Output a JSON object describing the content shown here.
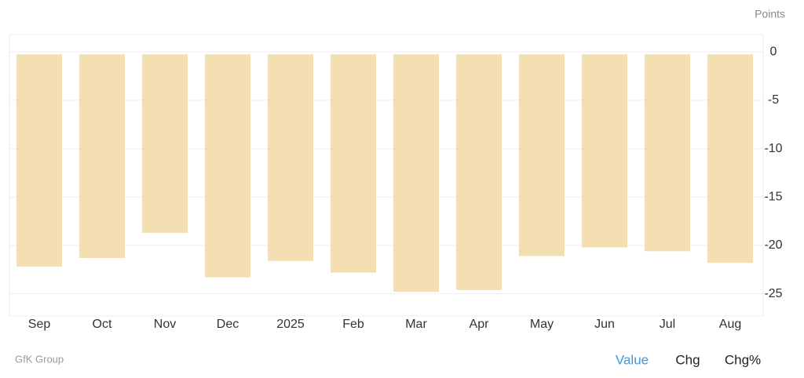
{
  "chart_data": {
    "type": "bar",
    "unit_label": "Points",
    "categories": [
      "Sep",
      "Oct",
      "Nov",
      "Dec",
      "2025",
      "Feb",
      "Mar",
      "Apr",
      "May",
      "Jun",
      "Jul",
      "Aug"
    ],
    "values": [
      -22.2,
      -21.3,
      -18.7,
      -23.3,
      -21.6,
      -22.8,
      -24.8,
      -24.6,
      -21.1,
      -20.2,
      -20.6,
      -21.8
    ],
    "color": "#f3deb2",
    "ylim": [
      -27.3,
      1.8
    ],
    "yticks": [
      0,
      -5,
      -10,
      -15,
      -20,
      -25
    ],
    "grid": true
  },
  "footer": {
    "source": "GfK Group",
    "tabs": [
      "Value",
      "Chg",
      "Chg%"
    ],
    "active_tab": 0
  }
}
